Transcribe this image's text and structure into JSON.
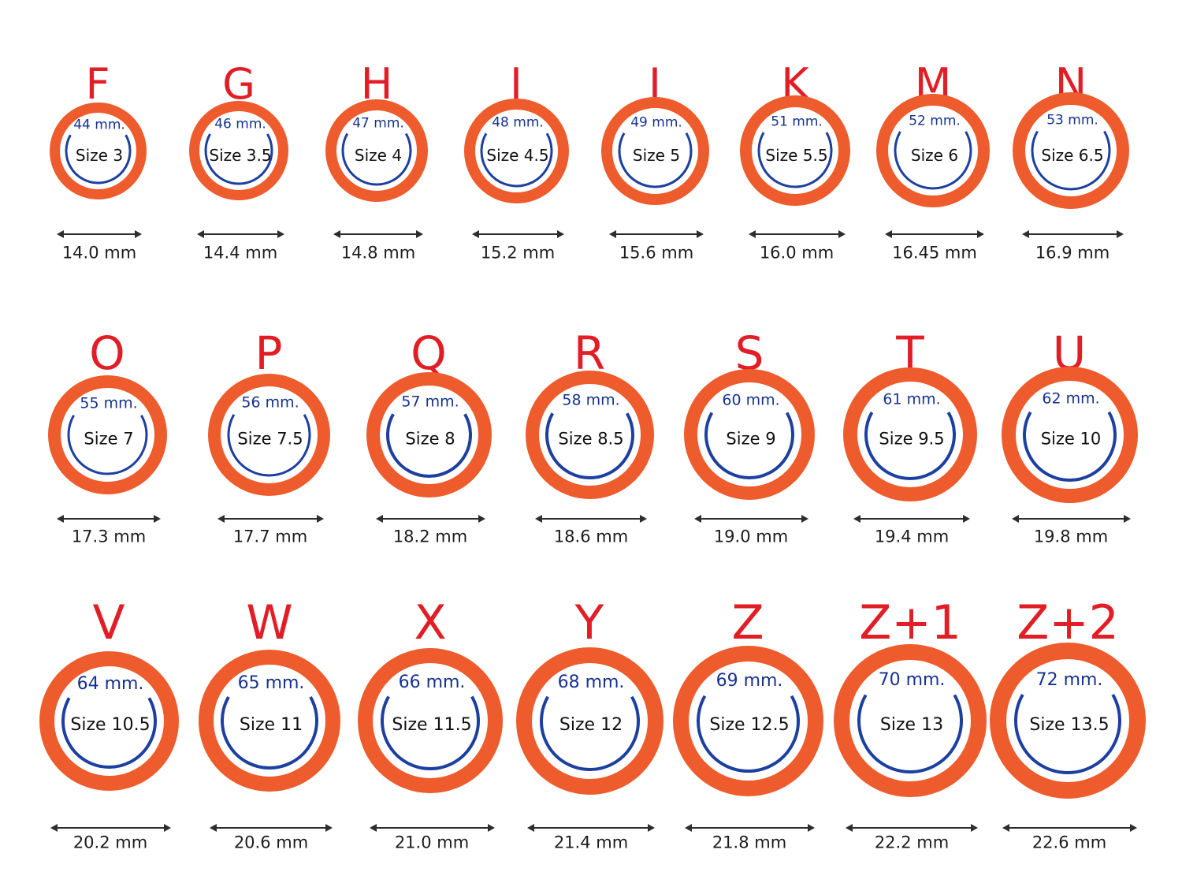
{
  "colors": {
    "ring_outer": "#ee5b2c",
    "ring_inner": "#1d3fa0",
    "letter": "#e11d25",
    "circumference_text": "#16328f",
    "size_text": "#111111"
  },
  "rows": [
    [
      {
        "letter": "F",
        "circumference": "44 mm.",
        "size": "Size 3",
        "diameter": "14.0 mm",
        "diameter_mm": 14.0
      },
      {
        "letter": "G",
        "circumference": "46 mm.",
        "size": "Size 3.5",
        "diameter": "14.4 mm",
        "diameter_mm": 14.4
      },
      {
        "letter": "H",
        "circumference": "47 mm.",
        "size": "Size 4",
        "diameter": "14.8 mm",
        "diameter_mm": 14.8
      },
      {
        "letter": "I",
        "circumference": "48 mm.",
        "size": "Size 4.5",
        "diameter": "15.2 mm",
        "diameter_mm": 15.2
      },
      {
        "letter": "J",
        "circumference": "49 mm.",
        "size": "Size 5",
        "diameter": "15.6 mm",
        "diameter_mm": 15.6
      },
      {
        "letter": "K",
        "circumference": "51 mm.",
        "size": "Size 5.5",
        "diameter": "16.0 mm",
        "diameter_mm": 16.0
      },
      {
        "letter": "M",
        "circumference": "52 mm.",
        "size": "Size 6",
        "diameter": "16.45 mm",
        "diameter_mm": 16.45
      },
      {
        "letter": "N",
        "circumference": "53 mm.",
        "size": "Size 6.5",
        "diameter": "16.9 mm",
        "diameter_mm": 16.9
      }
    ],
    [
      {
        "letter": "O",
        "circumference": "55 mm.",
        "size": "Size 7",
        "diameter": "17.3 mm",
        "diameter_mm": 17.3
      },
      {
        "letter": "P",
        "circumference": "56 mm.",
        "size": "Size 7.5",
        "diameter": "17.7 mm",
        "diameter_mm": 17.7
      },
      {
        "letter": "Q",
        "circumference": "57 mm.",
        "size": "Size 8",
        "diameter": "18.2 mm",
        "diameter_mm": 18.2
      },
      {
        "letter": "R",
        "circumference": "58 mm.",
        "size": "Size 8.5",
        "diameter": "18.6 mm",
        "diameter_mm": 18.6
      },
      {
        "letter": "S",
        "circumference": "60 mm.",
        "size": "Size 9",
        "diameter": "19.0 mm",
        "diameter_mm": 19.0
      },
      {
        "letter": "T",
        "circumference": "61 mm.",
        "size": "Size 9.5",
        "diameter": "19.4 mm",
        "diameter_mm": 19.4
      },
      {
        "letter": "U",
        "circumference": "62 mm.",
        "size": "Size 10",
        "diameter": "19.8 mm",
        "diameter_mm": 19.8
      }
    ],
    [
      {
        "letter": "V",
        "circumference": "64 mm.",
        "size": "Size 10.5",
        "diameter": "20.2 mm",
        "diameter_mm": 20.2
      },
      {
        "letter": "W",
        "circumference": "65 mm.",
        "size": "Size 11",
        "diameter": "20.6 mm",
        "diameter_mm": 20.6
      },
      {
        "letter": "X",
        "circumference": "66 mm.",
        "size": "Size 11.5",
        "diameter": "21.0 mm",
        "diameter_mm": 21.0
      },
      {
        "letter": "Y",
        "circumference": "68 mm.",
        "size": "Size 12",
        "diameter": "21.4 mm",
        "diameter_mm": 21.4
      },
      {
        "letter": "Z",
        "circumference": "69 mm.",
        "size": "Size 12.5",
        "diameter": "21.8 mm",
        "diameter_mm": 21.8
      },
      {
        "letter": "Z+1",
        "circumference": "70 mm.",
        "size": "Size 13",
        "diameter": "22.2 mm",
        "diameter_mm": 22.2
      },
      {
        "letter": "Z+2",
        "circumference": "72 mm.",
        "size": "Size 13.5",
        "diameter": "22.6 mm",
        "diameter_mm": 22.6
      }
    ]
  ]
}
